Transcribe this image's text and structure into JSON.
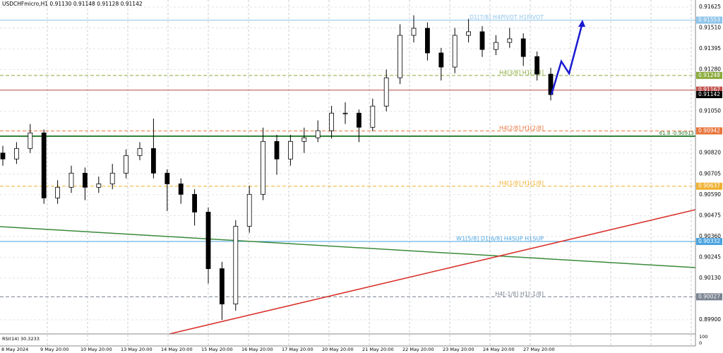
{
  "chart_data": {
    "type": "candlestick",
    "header": "USDCHFmicro,H1  0.91130 0.91148 0.91128 0.91142",
    "rsi_label": "RSI(14) 30.3233",
    "rsi_ticks": [
      "100",
      "0"
    ],
    "ylim": [
      0.89826,
      0.91664
    ],
    "yticks": [
      0.91625,
      {
        "value": 0.9151,
        "label": "0.91510"
      },
      0.91395,
      {
        "value": 0.9128,
        "label": "0.91280"
      },
      {
        "value": 0.9105,
        "label": "0.91050"
      },
      {
        "value": 0.9082,
        "label": "0.90820"
      },
      0.90705,
      {
        "value": 0.9059,
        "label": "0.90590"
      },
      0.90475,
      {
        "value": 0.9036,
        "label": "0.90360"
      },
      0.90245,
      {
        "value": 0.9013,
        "label": "0.90130"
      },
      {
        "value": 0.899,
        "label": "0.89900"
      }
    ],
    "time_labels": [
      "8 May 2024",
      "9 May 20:00",
      "10 May 20:00",
      "13 May 20:00",
      "14 May 20:00",
      "15 May 20:00",
      "16 May 20:00",
      "17 May 20:00",
      "20 May 20:00",
      "21 May 20:00",
      "22 May 20:00",
      "23 May 20:00",
      "24 May 20:00",
      "27 May 20:00"
    ],
    "current_price": 0.91142,
    "levels": [
      {
        "price": 0.91553,
        "label": "D1[7/8] H4PIVOT H1PIVOT",
        "color": "#8ec4ea",
        "dash": false
      },
      {
        "price": 0.91248,
        "label": "H4[3/8] H1[3/8]",
        "color": "#8aaa3a",
        "dash": true
      },
      {
        "price": 0.91167,
        "color": "#c0504d",
        "dash": false
      },
      {
        "price": 0.90942,
        "label": "H4[2/8] H1[2/8]",
        "color": "#e8743b",
        "dash": true
      },
      {
        "price": 0.90637,
        "label": "H4[1/8] H1[1/8]",
        "color": "#f0b030",
        "dash": true
      },
      {
        "price": 0.90332,
        "label": "W1[5/8] D1[6/8] H4SUP H1SUP",
        "color": "#4aa3df",
        "dash": false
      },
      {
        "price": 0.90027,
        "label": "H4[-1/8] H1[-1/8]",
        "color": "#7a8290",
        "dash": true
      }
    ],
    "fib": {
      "price": 0.90913,
      "label": "61.8 -0.90913",
      "color": "#2e7d32"
    },
    "open": [
      0.9082,
      0.90787,
      0.90845,
      0.90931,
      0.90572,
      0.90631,
      0.90709,
      0.90631,
      0.9065,
      0.90709,
      0.90806,
      0.90845,
      0.90709,
      0.9065,
      0.90592,
      0.90494,
      0.90182,
      0.89987,
      0.90416,
      0.90592,
      0.90884,
      0.90787,
      0.90884,
      0.90904,
      0.90943,
      0.9104,
      0.9104,
      0.90962,
      0.91079,
      0.91235,
      0.91469,
      0.91508,
      0.91372,
      0.91294,
      0.91469,
      0.91489,
      0.91391,
      0.9143,
      0.9145,
      0.91352,
      0.91255
    ],
    "high": [
      0.9086,
      0.9088,
      0.9098,
      0.9095,
      0.9067,
      0.9075,
      0.9074,
      0.9069,
      0.9076,
      0.9084,
      0.9088,
      0.9101,
      0.9073,
      0.9068,
      0.9062,
      0.9052,
      0.9022,
      0.9045,
      0.9064,
      0.9096,
      0.9092,
      0.9092,
      0.9096,
      0.91,
      0.9108,
      0.911,
      0.9106,
      0.9112,
      0.9128,
      0.9153,
      0.9158,
      0.9154,
      0.914,
      0.9151,
      0.9156,
      0.9152,
      0.9147,
      0.9151,
      0.9148,
      0.9138,
      0.9129
    ],
    "low": [
      0.9075,
      0.9076,
      0.9082,
      0.9054,
      0.9054,
      0.906,
      0.9056,
      0.906,
      0.9062,
      0.9068,
      0.9078,
      0.9068,
      0.905,
      0.9054,
      0.9042,
      0.901,
      0.899,
      0.8995,
      0.9038,
      0.9056,
      0.907,
      0.9075,
      0.9082,
      0.9088,
      0.909,
      0.9098,
      0.9088,
      0.9094,
      0.9105,
      0.912,
      0.9143,
      0.9133,
      0.9122,
      0.9126,
      0.9143,
      0.9135,
      0.9136,
      0.914,
      0.913,
      0.9122,
      0.9111
    ],
    "close": [
      0.90787,
      0.90845,
      0.90931,
      0.90572,
      0.90631,
      0.90709,
      0.90631,
      0.9065,
      0.90709,
      0.90806,
      0.90845,
      0.90709,
      0.9065,
      0.90592,
      0.90494,
      0.90182,
      0.89987,
      0.90416,
      0.90592,
      0.90884,
      0.90787,
      0.90884,
      0.90904,
      0.90943,
      0.9104,
      0.9104,
      0.90962,
      0.91079,
      0.91235,
      0.91469,
      0.91508,
      0.91372,
      0.91294,
      0.91469,
      0.91489,
      0.91391,
      0.9143,
      0.9145,
      0.91352,
      0.91255,
      0.91142
    ]
  }
}
